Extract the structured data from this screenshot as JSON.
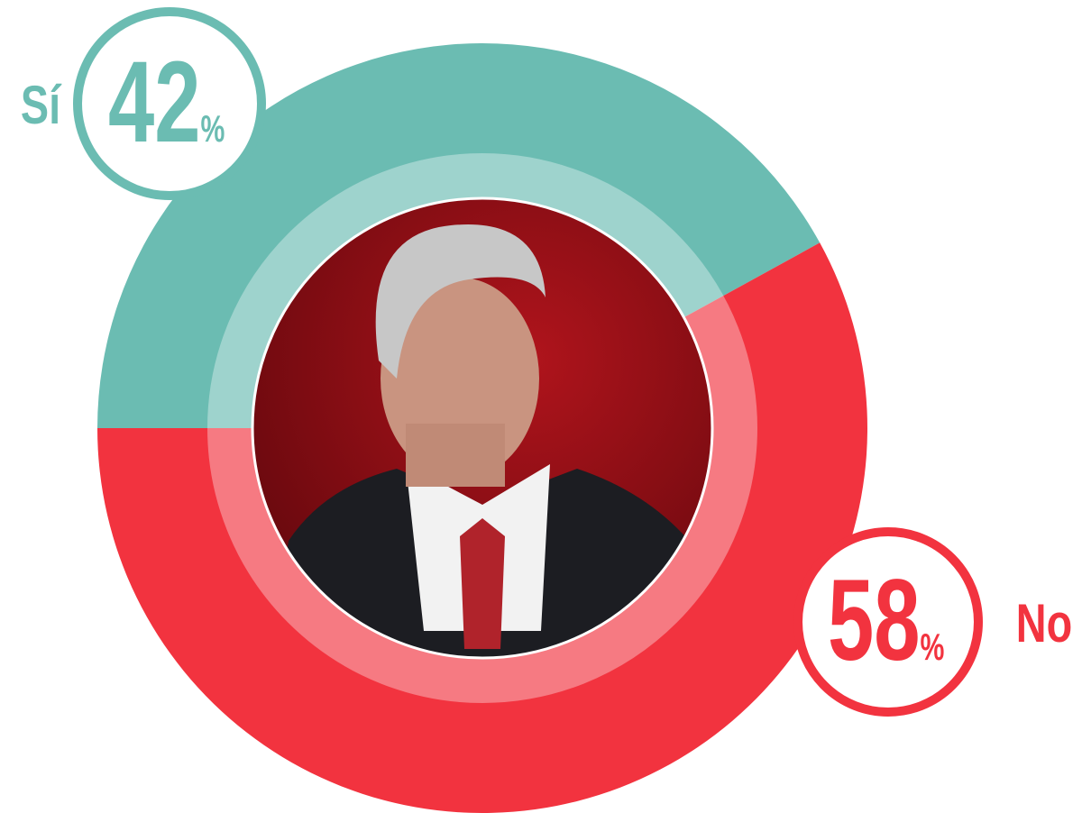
{
  "chart_data": {
    "type": "donut",
    "categories": [
      "Sí",
      "No"
    ],
    "values": [
      42,
      58
    ],
    "value_labels": [
      "42%",
      "58%"
    ],
    "colors": [
      "#6bbcb2",
      "#f2333f"
    ]
  }
}
